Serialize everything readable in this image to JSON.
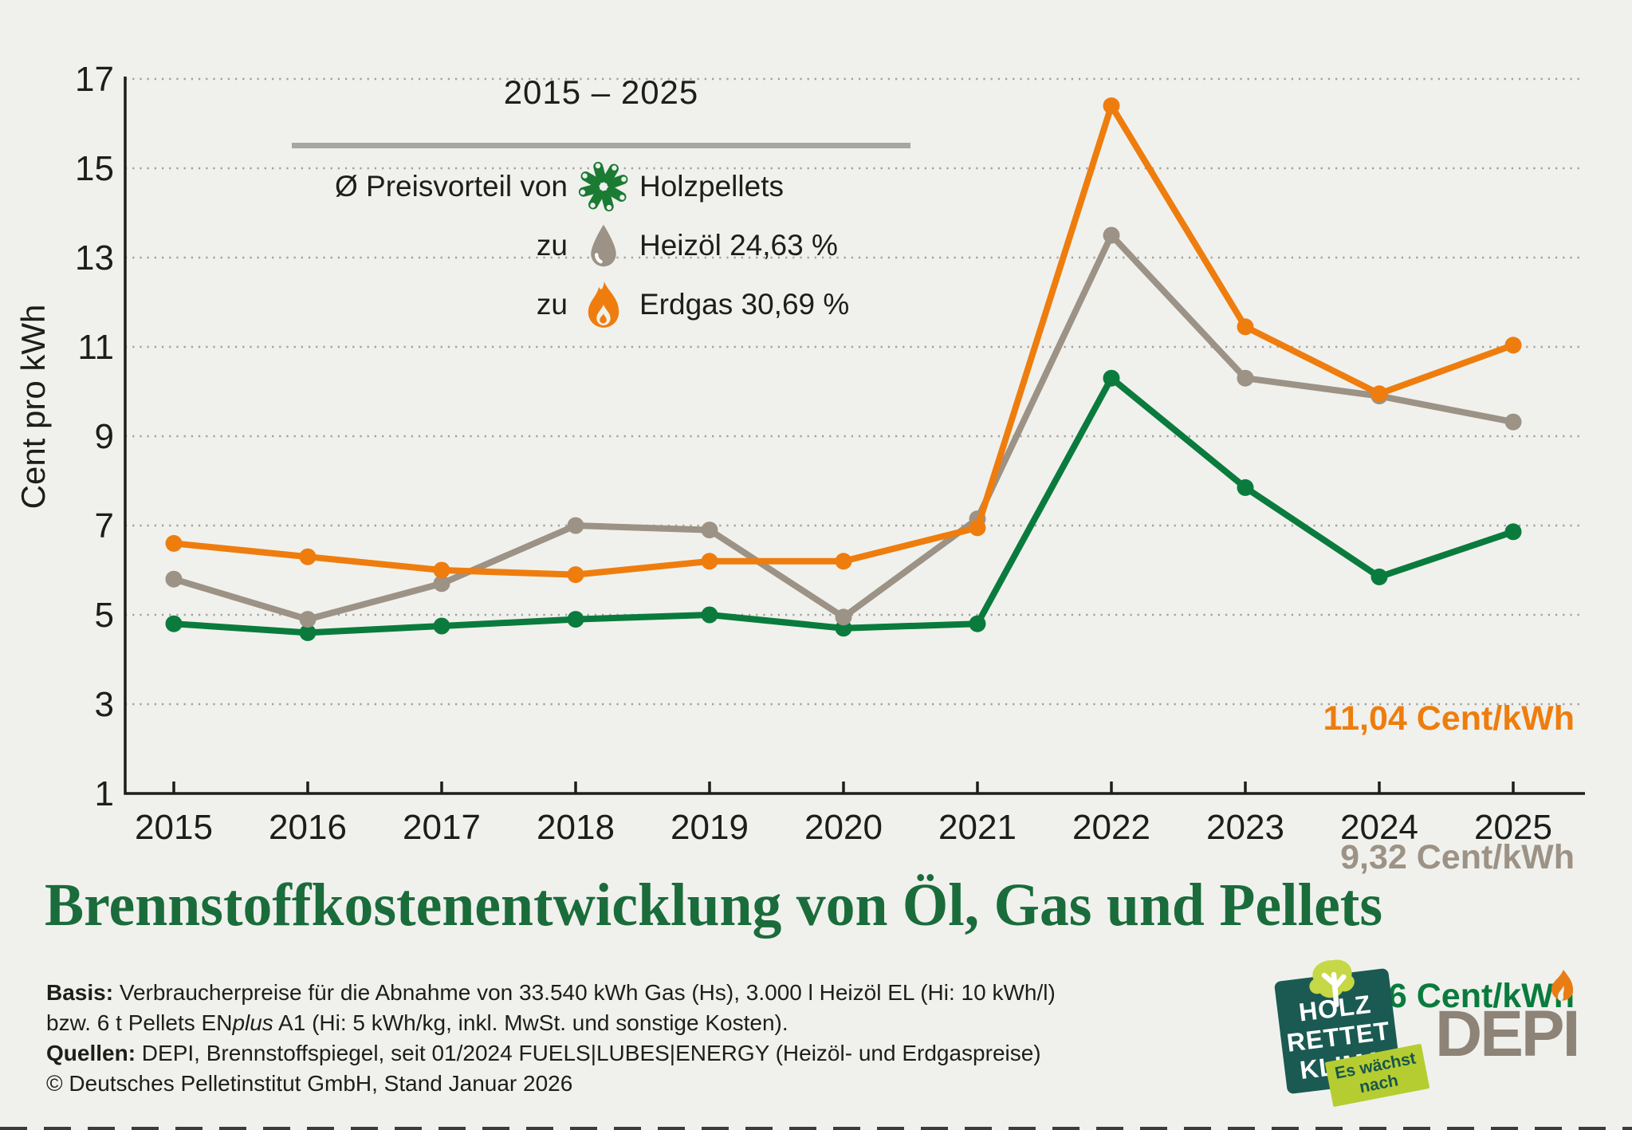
{
  "colors": {
    "background": "#f0f1ed",
    "axis": "#1d1e1c",
    "grid": "#9f9f9b",
    "legend_rule": "#a6a6a2",
    "title_green": "#1a6c3b",
    "erdgas_orange": "#ee7d0e",
    "heizoel_taupe": "#9c9285",
    "pellets_green": "#0a7b3d",
    "badge_teal": "#1a5a52",
    "badge_tag_green": "#b6cd32",
    "depi_gray": "#8d8377"
  },
  "chart_data": {
    "type": "line",
    "title": "2015 – 2025",
    "xlabel": "",
    "ylabel": "Cent pro kWh",
    "ylim": [
      1,
      17
    ],
    "yticks": [
      17,
      15,
      13,
      11,
      9,
      7,
      5,
      3,
      1
    ],
    "grid": "horizontal-dotted",
    "legend_position": "top-left-inside",
    "categories": [
      "2015",
      "2016",
      "2017",
      "2018",
      "2019",
      "2020",
      "2021",
      "2022",
      "2023",
      "2024",
      "2025"
    ],
    "series": [
      {
        "name": "Erdgas",
        "color": "#ee7d0e",
        "values": [
          6.6,
          6.3,
          6.0,
          5.9,
          6.2,
          6.2,
          6.95,
          16.4,
          11.45,
          9.95,
          11.04
        ],
        "end_label": "11,04 Cent/kWh"
      },
      {
        "name": "Heizöl",
        "color": "#9c9285",
        "values": [
          5.8,
          4.9,
          5.7,
          7.0,
          6.9,
          4.95,
          7.15,
          13.5,
          10.3,
          9.9,
          9.32
        ],
        "end_label": "9,32 Cent/kWh"
      },
      {
        "name": "Holzpellets",
        "color": "#0a7b3d",
        "values": [
          4.8,
          4.6,
          4.75,
          4.9,
          5.0,
          4.7,
          4.8,
          10.3,
          7.85,
          5.85,
          6.86
        ],
        "end_label": "6,86 Cent/kWh"
      }
    ]
  },
  "axis": {
    "y_label": "Cent pro kWh",
    "y_ticks": [
      "17",
      "15",
      "13",
      "11",
      "9",
      "7",
      "5",
      "3",
      "1"
    ],
    "x_ticks": [
      "2015",
      "2016",
      "2017",
      "2018",
      "2019",
      "2020",
      "2021",
      "2022",
      "2023",
      "2024",
      "2025"
    ]
  },
  "legend": {
    "period": "2015 – 2025",
    "rows": [
      {
        "prefix": "Ø Preisvorteil von",
        "icon": "pellets-icon",
        "label": "Holzpellets"
      },
      {
        "prefix": "zu",
        "icon": "oil-drop-icon",
        "label": "Heizöl 24,63 %"
      },
      {
        "prefix": "zu",
        "icon": "flame-icon",
        "label": "Erdgas 30,69 %"
      }
    ]
  },
  "title": "Brennstoffkostenentwicklung von Öl, Gas und Pellets",
  "footer": {
    "basis_label": "Basis:",
    "basis_text_1": " Verbraucherpreise für die Abnahme von 33.540 kWh Gas (Hs), 3.000 l Heizöl EL (Hi: 10 kWh/l)",
    "basis_text_2a": "bzw. 6 t Pellets EN",
    "basis_text_2b": "plus",
    "basis_text_2c": " A1 (Hi: 5 kWh/kg, inkl. MwSt. und sonstige Kosten).",
    "quellen_label": "Quellen:",
    "quellen_text": " DEPI, Brennstoffspiegel, seit 01/2024 FUELS|LUBES|ENERGY (Heizöl- und Erdgaspreise)",
    "copyright": "© Deutsches Pelletinstitut GmbH, Stand Januar 2026"
  },
  "logos": {
    "badge": {
      "line1": "HOLZ",
      "line2": "RETTET",
      "line3": "KLIMA",
      "tag_line1": "Es wächst",
      "tag_line2": "nach"
    },
    "depi": {
      "text": "DEPI"
    }
  }
}
